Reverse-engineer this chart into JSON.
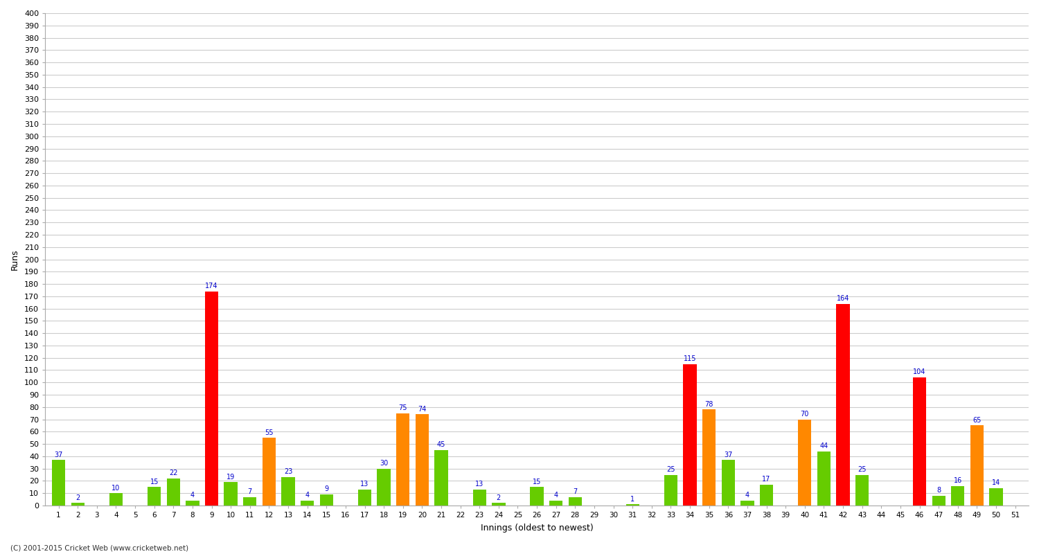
{
  "innings": [
    1,
    2,
    3,
    4,
    5,
    6,
    7,
    8,
    9,
    10,
    11,
    12,
    13,
    14,
    15,
    16,
    17,
    18,
    19,
    20,
    21,
    22,
    23,
    24,
    25,
    26,
    27,
    28,
    29,
    30,
    31,
    32,
    33,
    34,
    35,
    36,
    37,
    38,
    39,
    40,
    41,
    42,
    43,
    44,
    45,
    46,
    47,
    48,
    49,
    50,
    51
  ],
  "scores": [
    37,
    2,
    0,
    10,
    0,
    15,
    22,
    4,
    174,
    19,
    7,
    55,
    23,
    4,
    9,
    0,
    13,
    30,
    75,
    74,
    45,
    0,
    13,
    2,
    0,
    15,
    4,
    7,
    0,
    0,
    1,
    0,
    25,
    115,
    78,
    37,
    4,
    17,
    0,
    70,
    44,
    164,
    25,
    0,
    0,
    104,
    8,
    16,
    65,
    14,
    0
  ],
  "ylabel": "Runs",
  "xlabel": "Innings (oldest to newest)",
  "ylim": [
    0,
    400
  ],
  "ytick_step": 10,
  "color_normal": "#66cc00",
  "color_fifty": "#ff8800",
  "color_hundred": "#ff0000",
  "background_color": "#ffffff",
  "grid_color": "#cccccc",
  "label_color": "#0000cc",
  "footer": "(C) 2001-2015 Cricket Web (www.cricketweb.net)"
}
